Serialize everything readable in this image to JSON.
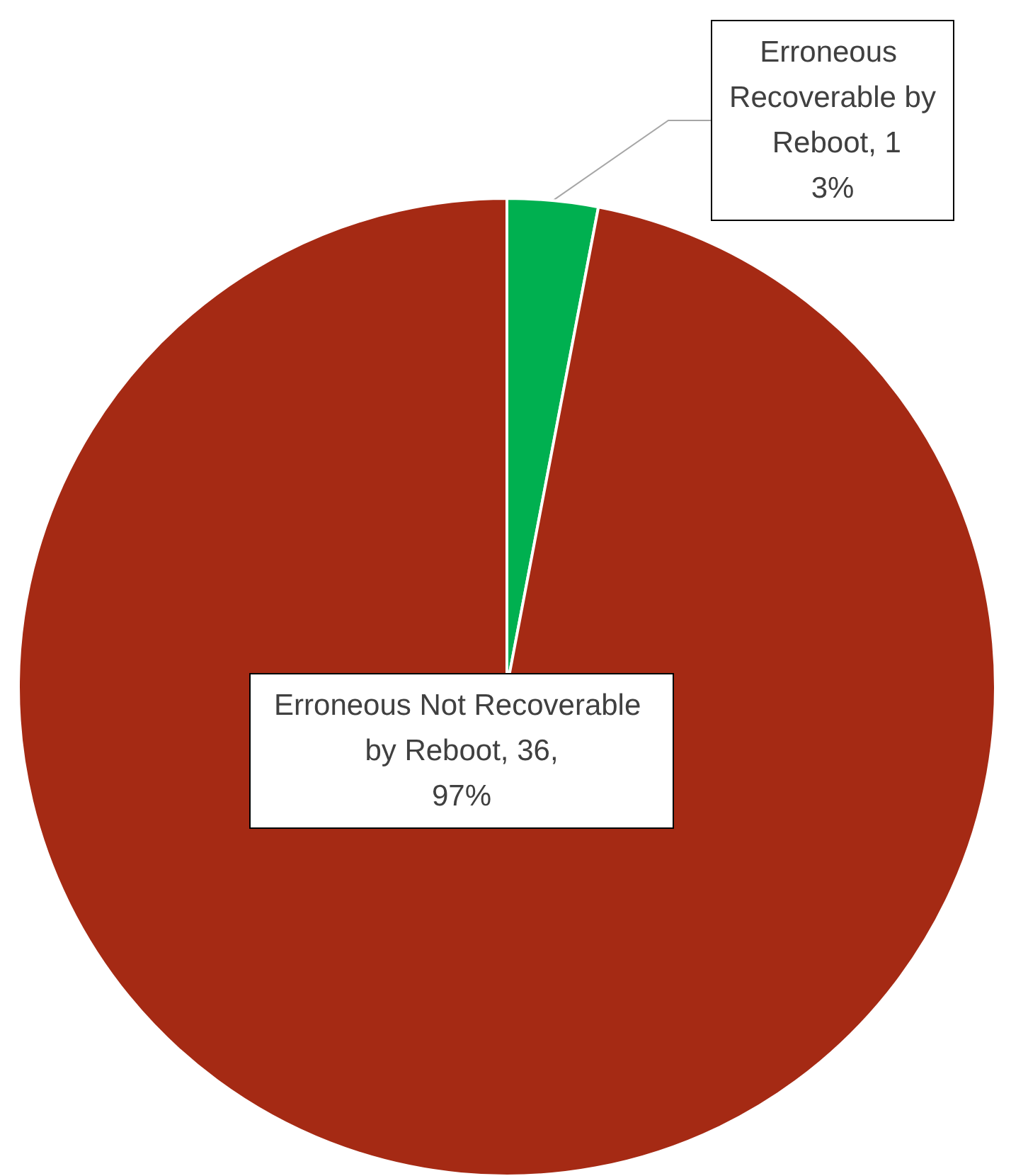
{
  "chart_data": {
    "type": "pie",
    "categories": [
      "Erroneous Recoverable by Reboot, 1",
      "Erroneous Not Recoverable by Reboot, 36"
    ],
    "values": [
      3,
      97
    ],
    "colors": [
      "#00b050",
      "#a52a14"
    ],
    "value_labels": [
      "3%",
      ",\n97%"
    ],
    "legend": false
  }
}
